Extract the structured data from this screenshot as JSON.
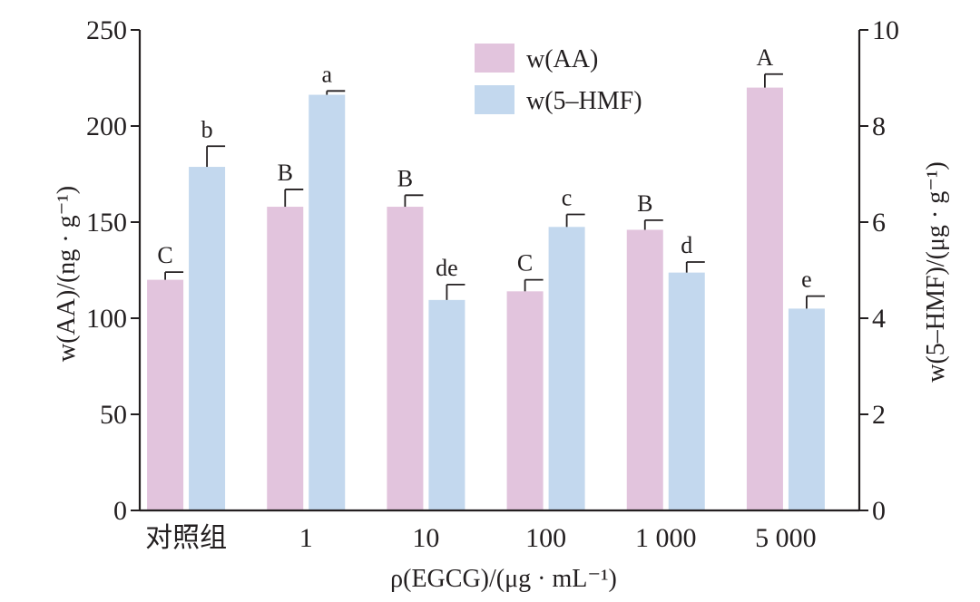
{
  "chart_data": {
    "type": "bar",
    "categories": [
      "对照组",
      "1",
      "10",
      "100",
      "1 000",
      "5 000"
    ],
    "xlabel": "ρ(EGCG)/(μg · mL⁻¹)",
    "ylabel_left": "w(AA)/(ng · g⁻¹)",
    "ylabel_right": "w(5–HMF)/(μg · g⁻¹)",
    "ylim_left": [
      0,
      250
    ],
    "ylim_right": [
      0,
      10
    ],
    "yticks_left": [
      "0",
      "50",
      "100",
      "150",
      "200",
      "250"
    ],
    "yticks_right": [
      "0",
      "2",
      "4",
      "6",
      "8",
      "10"
    ],
    "grid": false,
    "legend_position": "top-center",
    "series": [
      {
        "name": "w(AA)",
        "axis": "left",
        "color": "#e2c4dd",
        "values": [
          120,
          158,
          158,
          114,
          146,
          220
        ],
        "errors": [
          4,
          9,
          6,
          6,
          5,
          7
        ],
        "letters": [
          "C",
          "B",
          "B",
          "C",
          "B",
          "A"
        ]
      },
      {
        "name": "w(5–HMF)",
        "axis": "right",
        "color": "#c3d8ee",
        "values": [
          7.15,
          8.65,
          4.38,
          5.9,
          4.95,
          4.2
        ],
        "errors": [
          0.43,
          0.08,
          0.32,
          0.26,
          0.22,
          0.26
        ],
        "letters": [
          "b",
          "a",
          "de",
          "c",
          "d",
          "e"
        ]
      }
    ]
  }
}
